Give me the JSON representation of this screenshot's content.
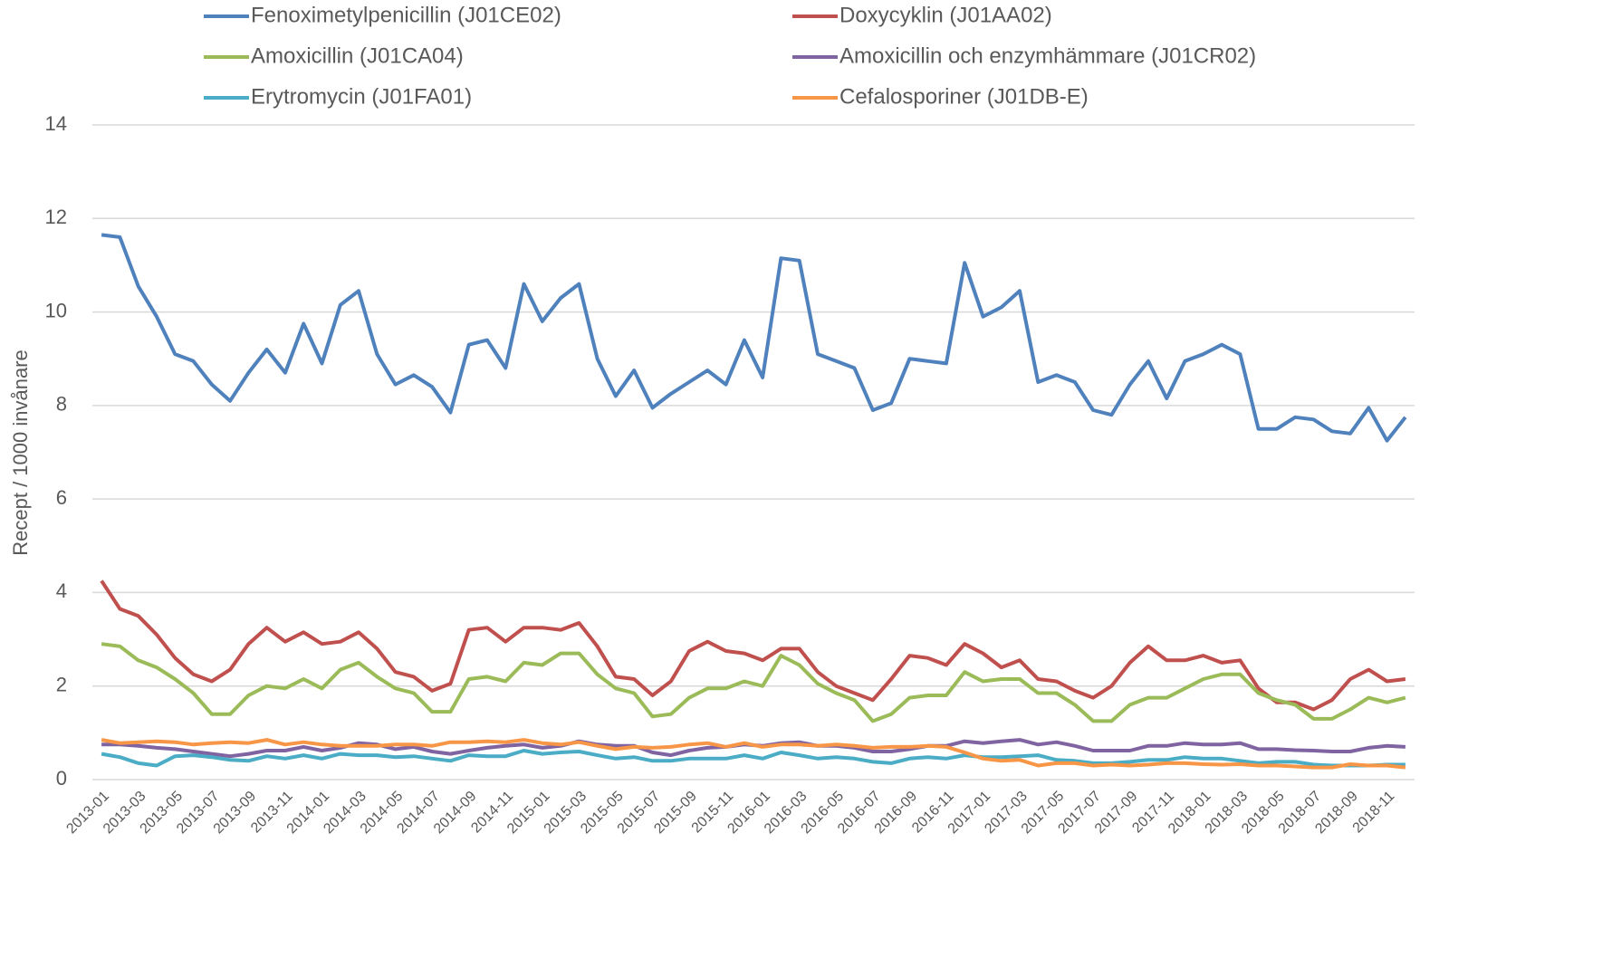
{
  "chart_data": {
    "type": "line",
    "ylabel": "Recept / 1000 invånare",
    "ylim": [
      0,
      14
    ],
    "yticks": [
      0,
      2,
      4,
      6,
      8,
      10,
      12,
      14
    ],
    "grid": true,
    "categories": [
      "2013-01",
      null,
      "2013-03",
      null,
      "2013-05",
      null,
      "2013-07",
      null,
      "2013-09",
      null,
      "2013-11",
      null,
      "2014-01",
      null,
      "2014-03",
      null,
      "2014-05",
      null,
      "2014-07",
      null,
      "2014-09",
      null,
      "2014-11",
      null,
      "2015-01",
      null,
      "2015-03",
      null,
      "2015-05",
      null,
      "2015-07",
      null,
      "2015-09",
      null,
      "2015-11",
      null,
      "2016-01",
      null,
      "2016-03",
      null,
      "2016-05",
      null,
      "2016-07",
      null,
      "2016-09",
      null,
      "2016-11",
      null,
      "2017-01",
      null,
      "2017-03",
      null,
      "2017-05",
      null,
      "2017-07",
      null,
      "2017-09",
      null,
      "2017-11",
      null,
      "2018-01",
      null,
      "2018-03",
      null,
      "2018-05",
      null,
      "2018-07",
      null,
      "2018-09",
      null,
      "2018-11",
      null
    ],
    "series": [
      {
        "name": "Fenoximetylpenicillin (J01CE02)",
        "color": "#4F81BD",
        "values": [
          11.65,
          11.6,
          10.55,
          9.9,
          9.1,
          8.95,
          8.45,
          8.1,
          8.7,
          9.2,
          8.7,
          9.75,
          8.9,
          10.15,
          10.45,
          9.1,
          8.45,
          8.65,
          8.4,
          7.85,
          9.3,
          9.4,
          8.8,
          10.6,
          9.8,
          10.3,
          10.6,
          9.0,
          8.2,
          8.75,
          7.95,
          8.25,
          8.5,
          8.75,
          8.45,
          9.4,
          8.6,
          11.15,
          11.1,
          9.1,
          8.95,
          8.8,
          7.9,
          8.05,
          9.0,
          8.95,
          8.9,
          11.05,
          9.9,
          10.1,
          10.45,
          8.5,
          8.65,
          8.5,
          7.9,
          7.8,
          8.45,
          8.95,
          8.15,
          8.95,
          9.1,
          9.3,
          9.1,
          7.5,
          7.5,
          7.75,
          7.7,
          7.45,
          7.4,
          7.95,
          7.25,
          7.75
        ]
      },
      {
        "name": "Doxycyklin (J01AA02)",
        "color": "#C0504D",
        "values": [
          4.25,
          3.65,
          3.5,
          3.1,
          2.6,
          2.25,
          2.1,
          2.35,
          2.9,
          3.25,
          2.95,
          3.15,
          2.9,
          2.95,
          3.15,
          2.8,
          2.3,
          2.2,
          1.9,
          2.05,
          3.2,
          3.25,
          2.95,
          3.25,
          3.25,
          3.2,
          3.35,
          2.85,
          2.2,
          2.15,
          1.8,
          2.1,
          2.75,
          2.95,
          2.75,
          2.7,
          2.55,
          2.8,
          2.8,
          2.3,
          2.0,
          1.85,
          1.7,
          2.15,
          2.65,
          2.6,
          2.45,
          2.9,
          2.7,
          2.4,
          2.55,
          2.15,
          2.1,
          1.9,
          1.75,
          2.0,
          2.5,
          2.85,
          2.55,
          2.55,
          2.65,
          2.5,
          2.55,
          1.95,
          1.65,
          1.65,
          1.5,
          1.7,
          2.15,
          2.35,
          2.1,
          2.15
        ]
      },
      {
        "name": "Amoxicillin (J01CA04)",
        "color": "#9BBB59",
        "values": [
          2.9,
          2.85,
          2.55,
          2.4,
          2.15,
          1.85,
          1.4,
          1.4,
          1.8,
          2.0,
          1.95,
          2.15,
          1.95,
          2.35,
          2.5,
          2.2,
          1.95,
          1.85,
          1.45,
          1.45,
          2.15,
          2.2,
          2.1,
          2.5,
          2.45,
          2.7,
          2.7,
          2.25,
          1.95,
          1.85,
          1.35,
          1.4,
          1.75,
          1.95,
          1.95,
          2.1,
          2.0,
          2.65,
          2.45,
          2.05,
          1.85,
          1.7,
          1.25,
          1.4,
          1.75,
          1.8,
          1.8,
          2.3,
          2.1,
          2.15,
          2.15,
          1.85,
          1.85,
          1.6,
          1.25,
          1.25,
          1.6,
          1.75,
          1.75,
          1.95,
          2.15,
          2.25,
          2.25,
          1.85,
          1.7,
          1.6,
          1.3,
          1.3,
          1.5,
          1.75,
          1.65,
          1.75
        ]
      },
      {
        "name": "Amoxicillin och enzymhämmare (J01CR02)",
        "color": "#8064A2",
        "values": [
          0.75,
          0.75,
          0.72,
          0.68,
          0.65,
          0.6,
          0.55,
          0.5,
          0.55,
          0.62,
          0.62,
          0.7,
          0.62,
          0.68,
          0.78,
          0.75,
          0.65,
          0.7,
          0.6,
          0.55,
          0.62,
          0.68,
          0.72,
          0.75,
          0.68,
          0.72,
          0.82,
          0.75,
          0.72,
          0.72,
          0.58,
          0.52,
          0.62,
          0.68,
          0.7,
          0.75,
          0.72,
          0.78,
          0.8,
          0.72,
          0.72,
          0.68,
          0.6,
          0.6,
          0.65,
          0.72,
          0.72,
          0.82,
          0.78,
          0.82,
          0.85,
          0.75,
          0.8,
          0.72,
          0.62,
          0.62,
          0.62,
          0.72,
          0.72,
          0.78,
          0.75,
          0.75,
          0.78,
          0.65,
          0.65,
          0.63,
          0.62,
          0.6,
          0.6,
          0.68,
          0.72,
          0.7
        ]
      },
      {
        "name": "Erytromycin (J01FA01)",
        "color": "#4BACC6",
        "values": [
          0.55,
          0.48,
          0.35,
          0.3,
          0.5,
          0.52,
          0.48,
          0.42,
          0.4,
          0.5,
          0.45,
          0.52,
          0.45,
          0.55,
          0.52,
          0.52,
          0.48,
          0.5,
          0.45,
          0.4,
          0.52,
          0.5,
          0.5,
          0.62,
          0.55,
          0.58,
          0.6,
          0.52,
          0.45,
          0.48,
          0.4,
          0.4,
          0.45,
          0.45,
          0.45,
          0.52,
          0.45,
          0.58,
          0.52,
          0.45,
          0.48,
          0.45,
          0.38,
          0.35,
          0.45,
          0.48,
          0.45,
          0.52,
          0.48,
          0.48,
          0.5,
          0.52,
          0.42,
          0.4,
          0.35,
          0.35,
          0.38,
          0.42,
          0.42,
          0.48,
          0.45,
          0.45,
          0.4,
          0.35,
          0.38,
          0.38,
          0.32,
          0.3,
          0.3,
          0.3,
          0.32,
          0.32
        ]
      },
      {
        "name": "Cefalosporiner (J01DB-E)",
        "color": "#F79646",
        "values": [
          0.85,
          0.78,
          0.8,
          0.82,
          0.8,
          0.75,
          0.78,
          0.8,
          0.78,
          0.85,
          0.75,
          0.8,
          0.75,
          0.72,
          0.72,
          0.72,
          0.75,
          0.75,
          0.72,
          0.8,
          0.8,
          0.82,
          0.8,
          0.85,
          0.78,
          0.75,
          0.8,
          0.72,
          0.65,
          0.7,
          0.68,
          0.7,
          0.75,
          0.78,
          0.7,
          0.78,
          0.7,
          0.75,
          0.75,
          0.72,
          0.75,
          0.72,
          0.68,
          0.7,
          0.7,
          0.72,
          0.7,
          0.58,
          0.45,
          0.4,
          0.42,
          0.3,
          0.35,
          0.35,
          0.3,
          0.32,
          0.3,
          0.32,
          0.35,
          0.35,
          0.33,
          0.32,
          0.33,
          0.3,
          0.3,
          0.28,
          0.26,
          0.26,
          0.33,
          0.3,
          0.3,
          0.26
        ]
      }
    ]
  }
}
